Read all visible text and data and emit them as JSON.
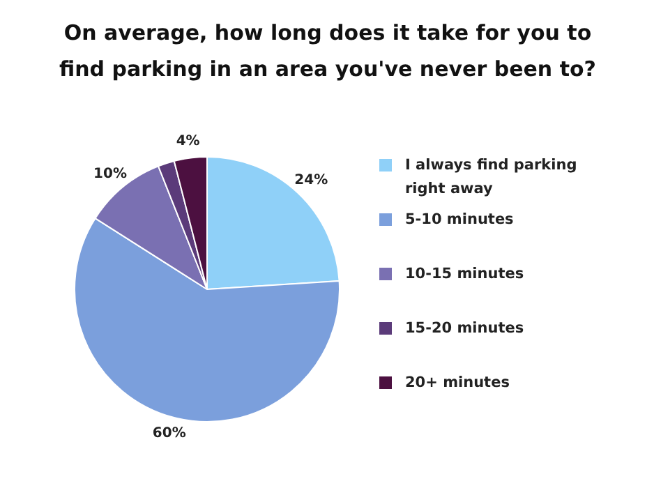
{
  "chart_data": {
    "type": "pie",
    "title": "On average, how long does it take for you to find parking in an area you've never been to?",
    "categories": [
      "I always find parking right away",
      "5-10 minutes",
      "10-15 minutes",
      "15-20 minutes",
      "20+ minutes"
    ],
    "values": [
      24,
      60,
      10,
      2,
      4
    ],
    "colors": [
      "#8fd0f8",
      "#7b9fdc",
      "#7a70b2",
      "#5b3b7a",
      "#4c1040"
    ],
    "value_labels": [
      "24%",
      "60%",
      "10%",
      null,
      "4%"
    ],
    "legend": "right"
  }
}
